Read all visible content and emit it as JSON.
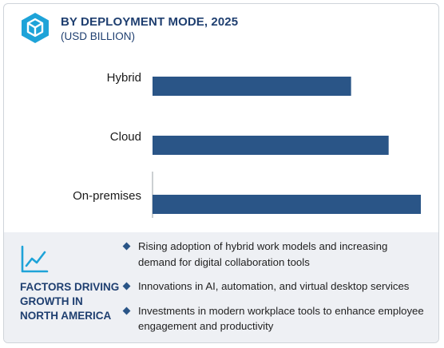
{
  "header": {
    "title": "BY DEPLOYMENT MODE, 2025",
    "subtitle": "(USD BILLION)",
    "logo_icon": "cube-logo-icon"
  },
  "colors": {
    "bar": "#2a5587",
    "title": "#1f3f70",
    "footer_bg": "#eef0f4"
  },
  "chart_data": {
    "type": "bar",
    "orientation": "horizontal",
    "title": "BY DEPLOYMENT MODE, 2025",
    "subtitle": "(USD BILLION)",
    "categories": [
      "Hybrid",
      "Cloud",
      "On-premises"
    ],
    "values": [
      74,
      88,
      100
    ],
    "xlim": [
      0,
      100
    ],
    "grid": false,
    "legend": "none"
  },
  "footer": {
    "icon": "trend-line-icon",
    "title": "FACTORS DRIVING GROWTH IN NORTH AMERICA",
    "factors": [
      "Rising adoption of hybrid work models and increasing demand for digital collaboration tools",
      "Innovations in AI, automation, and virtual desktop services",
      "Investments in modern workplace tools to enhance employee engagement and productivity"
    ]
  }
}
